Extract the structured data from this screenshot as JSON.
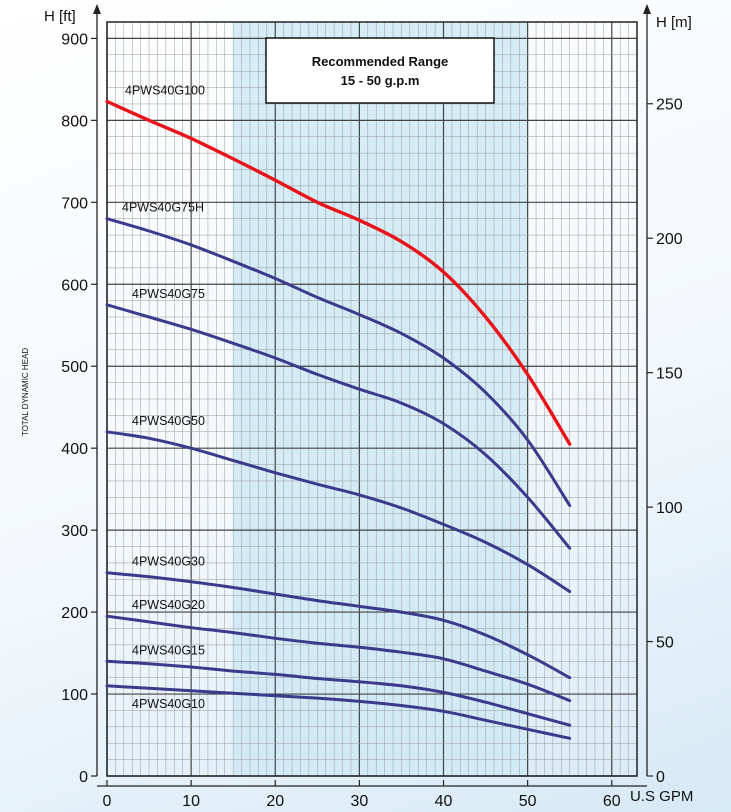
{
  "chart_data": {
    "type": "line",
    "ylabel_left": "H [ft]",
    "ylabel_right": "H [m]",
    "xlabel": "U.S GPM",
    "side_label": "TOTAL DYNAMIC HEAD",
    "xlim": [
      0,
      63
    ],
    "ylim_left": [
      0,
      920
    ],
    "ylim_right_m": [
      0,
      280.4
    ],
    "x_ticks": [
      0,
      10,
      20,
      30,
      40,
      50,
      60
    ],
    "y_ticks_left": [
      0,
      100,
      200,
      300,
      400,
      500,
      600,
      700,
      800,
      900
    ],
    "y_ticks_right": [
      0,
      50,
      100,
      150,
      200,
      250
    ],
    "grid": true,
    "recommended_range": {
      "title": "Recommended Range",
      "subtitle": "15 - 50 g.p.m",
      "x_from": 15,
      "x_to": 50
    },
    "series": [
      {
        "name": "4PWS40G100",
        "color": "#e8141a",
        "x": [
          0,
          5,
          10,
          15,
          20,
          25,
          30,
          35,
          40,
          45,
          50,
          55
        ],
        "y": [
          823,
          800,
          778,
          753,
          727,
          700,
          678,
          652,
          615,
          560,
          490,
          405
        ]
      },
      {
        "name": "4PWS40G75H",
        "color": "#3b3a8c",
        "x": [
          0,
          5,
          10,
          15,
          20,
          25,
          30,
          35,
          40,
          45,
          50,
          55
        ],
        "y": [
          680,
          665,
          648,
          628,
          607,
          584,
          563,
          540,
          510,
          468,
          410,
          330
        ]
      },
      {
        "name": "4PWS40G75",
        "color": "#3b3a8c",
        "x": [
          0,
          5,
          10,
          15,
          20,
          25,
          30,
          35,
          40,
          45,
          50,
          55
        ],
        "y": [
          575,
          560,
          545,
          528,
          510,
          490,
          472,
          455,
          430,
          392,
          340,
          278
        ]
      },
      {
        "name": "4PWS40G50",
        "color": "#3b3a8c",
        "x": [
          0,
          5,
          10,
          15,
          20,
          25,
          30,
          35,
          40,
          45,
          50,
          55
        ],
        "y": [
          420,
          412,
          400,
          385,
          370,
          356,
          343,
          327,
          307,
          285,
          258,
          225
        ]
      },
      {
        "name": "4PWS40G30",
        "color": "#3b3a8c",
        "x": [
          0,
          5,
          10,
          15,
          20,
          25,
          30,
          35,
          40,
          45,
          50,
          55
        ],
        "y": [
          248,
          243,
          237,
          230,
          222,
          214,
          207,
          200,
          190,
          172,
          148,
          120
        ]
      },
      {
        "name": "4PWS40G20",
        "color": "#3b3a8c",
        "x": [
          0,
          5,
          10,
          15,
          20,
          25,
          30,
          35,
          40,
          45,
          50,
          55
        ],
        "y": [
          195,
          188,
          181,
          175,
          168,
          162,
          157,
          151,
          143,
          128,
          112,
          92
        ]
      },
      {
        "name": "4PWS40G15",
        "color": "#3b3a8c",
        "x": [
          0,
          5,
          10,
          15,
          20,
          25,
          30,
          35,
          40,
          45,
          50,
          55
        ],
        "y": [
          140,
          137,
          133,
          128,
          124,
          119,
          115,
          110,
          102,
          90,
          76,
          62
        ]
      },
      {
        "name": "4PWS40G10",
        "color": "#3b3a8c",
        "x": [
          0,
          5,
          10,
          15,
          20,
          25,
          30,
          35,
          40,
          45,
          50,
          55
        ],
        "y": [
          110,
          107,
          104,
          101,
          98,
          95,
          91,
          86,
          79,
          68,
          57,
          46
        ]
      }
    ]
  }
}
